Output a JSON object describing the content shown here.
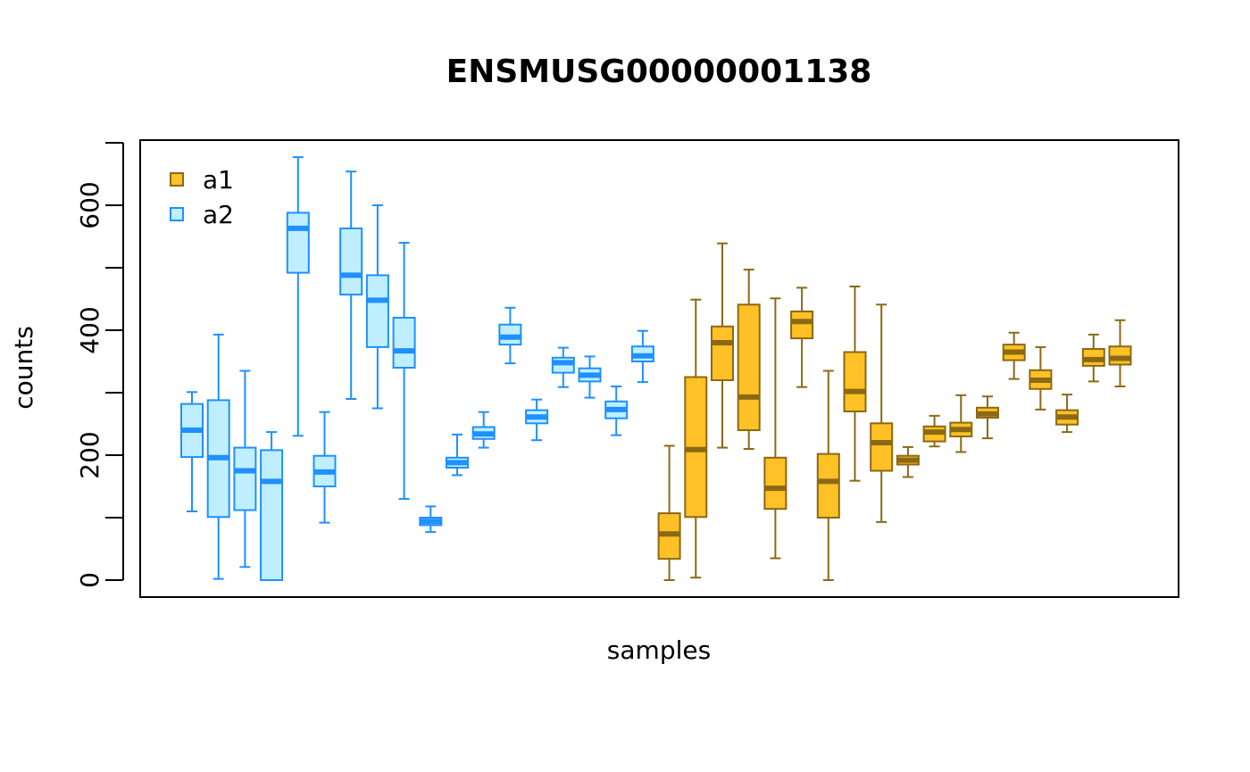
{
  "chart_data": {
    "type": "boxplot",
    "title": "ENSMUSG00000001138",
    "xlabel": "samples",
    "ylabel": "counts",
    "ylim": [
      0,
      700
    ],
    "y_ticks": [
      0,
      200,
      400,
      600
    ],
    "y_minor_ticks": [
      100,
      300,
      500,
      700
    ],
    "grid": false,
    "legend": {
      "placement": "top-left",
      "entries": [
        {
          "name": "a1",
          "fill": "#FFC125",
          "stroke": "#8B6914"
        },
        {
          "name": "a2",
          "fill": "#BFEFFF",
          "stroke": "#1E90FF"
        }
      ]
    },
    "series": [
      {
        "name": "a2",
        "fill": "#BFEFFF",
        "stroke": "#1E90FF",
        "boxes": [
          {
            "min": 110,
            "q1": 197,
            "median": 240,
            "q3": 282,
            "max": 301
          },
          {
            "min": 2,
            "q1": 101,
            "median": 196,
            "q3": 288,
            "max": 393
          },
          {
            "min": 21,
            "q1": 112,
            "median": 175,
            "q3": 212,
            "max": 335
          },
          {
            "min": 0,
            "q1": 0,
            "median": 158,
            "q3": 208,
            "max": 237
          },
          {
            "min": 231,
            "q1": 492,
            "median": 563,
            "q3": 588,
            "max": 677
          },
          {
            "min": 92,
            "q1": 150,
            "median": 173,
            "q3": 199,
            "max": 269
          },
          {
            "min": 290,
            "q1": 457,
            "median": 488,
            "q3": 563,
            "max": 654
          },
          {
            "min": 275,
            "q1": 373,
            "median": 448,
            "q3": 488,
            "max": 600
          },
          {
            "min": 130,
            "q1": 340,
            "median": 367,
            "q3": 420,
            "max": 540
          },
          {
            "min": 77,
            "q1": 88,
            "median": 94,
            "q3": 100,
            "max": 118
          },
          {
            "min": 168,
            "q1": 180,
            "median": 188,
            "q3": 196,
            "max": 233
          },
          {
            "min": 212,
            "q1": 226,
            "median": 234,
            "q3": 245,
            "max": 269
          },
          {
            "min": 347,
            "q1": 377,
            "median": 389,
            "q3": 409,
            "max": 436
          },
          {
            "min": 224,
            "q1": 251,
            "median": 261,
            "q3": 272,
            "max": 289
          },
          {
            "min": 309,
            "q1": 332,
            "median": 348,
            "q3": 356,
            "max": 372
          },
          {
            "min": 292,
            "q1": 318,
            "median": 328,
            "q3": 339,
            "max": 358
          },
          {
            "min": 232,
            "q1": 259,
            "median": 273,
            "q3": 286,
            "max": 310
          },
          {
            "min": 317,
            "q1": 350,
            "median": 359,
            "q3": 374,
            "max": 399
          }
        ]
      },
      {
        "name": "a1",
        "fill": "#FFC125",
        "stroke": "#8B6914",
        "boxes": [
          {
            "min": 0,
            "q1": 34,
            "median": 74,
            "q3": 107,
            "max": 215
          },
          {
            "min": 4,
            "q1": 101,
            "median": 209,
            "q3": 325,
            "max": 449
          },
          {
            "min": 212,
            "q1": 320,
            "median": 380,
            "q3": 406,
            "max": 539
          },
          {
            "min": 210,
            "q1": 240,
            "median": 293,
            "q3": 441,
            "max": 497
          },
          {
            "min": 35,
            "q1": 114,
            "median": 147,
            "q3": 196,
            "max": 451
          },
          {
            "min": 309,
            "q1": 387,
            "median": 414,
            "q3": 430,
            "max": 468
          },
          {
            "min": 0,
            "q1": 100,
            "median": 158,
            "q3": 202,
            "max": 335
          },
          {
            "min": 159,
            "q1": 270,
            "median": 302,
            "q3": 365,
            "max": 470
          },
          {
            "min": 93,
            "q1": 175,
            "median": 220,
            "q3": 251,
            "max": 441
          },
          {
            "min": 165,
            "q1": 185,
            "median": 192,
            "q3": 199,
            "max": 213
          },
          {
            "min": 214,
            "q1": 222,
            "median": 237,
            "q3": 246,
            "max": 263
          },
          {
            "min": 205,
            "q1": 230,
            "median": 241,
            "q3": 252,
            "max": 296
          },
          {
            "min": 227,
            "q1": 260,
            "median": 266,
            "q3": 276,
            "max": 294
          },
          {
            "min": 322,
            "q1": 352,
            "median": 365,
            "q3": 377,
            "max": 396
          },
          {
            "min": 273,
            "q1": 306,
            "median": 320,
            "q3": 336,
            "max": 373
          },
          {
            "min": 237,
            "q1": 249,
            "median": 261,
            "q3": 272,
            "max": 297
          },
          {
            "min": 318,
            "q1": 343,
            "median": 353,
            "q3": 370,
            "max": 393
          },
          {
            "min": 310,
            "q1": 345,
            "median": 355,
            "q3": 374,
            "max": 416
          }
        ]
      }
    ]
  }
}
